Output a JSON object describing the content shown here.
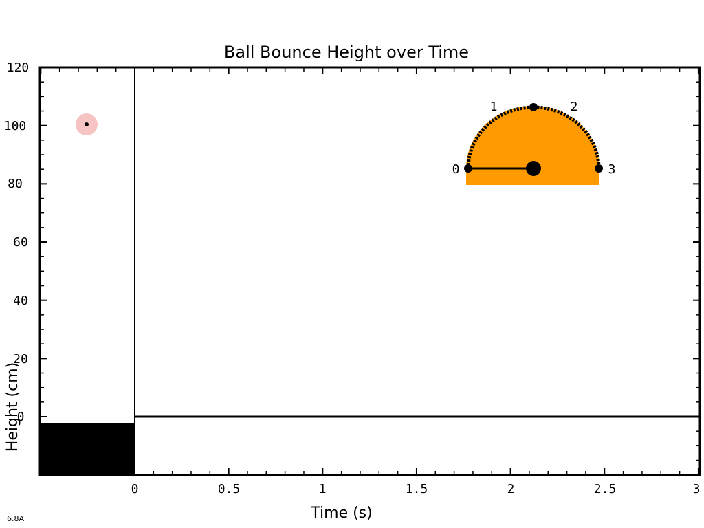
{
  "title": "Ball Bounce Height over Time",
  "xlabel": "Time (s)",
  "ylabel": "Height (cm)",
  "corner_label": "6.8A",
  "colors": {
    "axis": "#000000",
    "ball_marker": "#f7c4c4",
    "protractor_fill": "#ff9a00",
    "ground_block": "#000000"
  },
  "protractor": {
    "marks": [
      "0",
      "1",
      "2",
      "3"
    ]
  },
  "chart_data": {
    "type": "line",
    "title": "Ball Bounce Height over Time",
    "xlabel": "Time (s)",
    "ylabel": "Height (cm)",
    "xlim": [
      0,
      3
    ],
    "ylim": [
      -20,
      120
    ],
    "x_ticks": [
      "0",
      "0.5",
      "1",
      "1.5",
      "2",
      "2.5",
      "3"
    ],
    "y_ticks": [
      "0",
      "20",
      "40",
      "60",
      "80",
      "100",
      "120"
    ],
    "series": [],
    "ball_position_height": 100
  }
}
